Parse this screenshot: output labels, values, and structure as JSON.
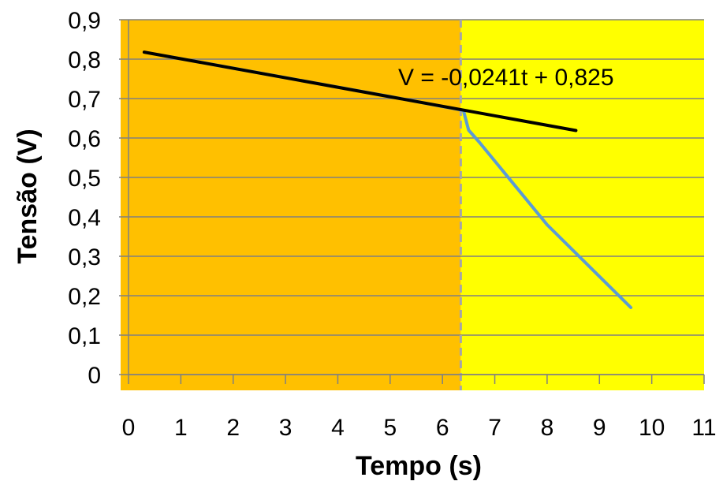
{
  "chart_data": {
    "type": "line",
    "title": "",
    "xlabel": "Tempo (s)",
    "ylabel": "Tensão (V)",
    "xlim": [
      0,
      11
    ],
    "ylim": [
      0,
      0.9
    ],
    "x_ticks": [
      "0",
      "1",
      "2",
      "3",
      "4",
      "5",
      "6",
      "7",
      "8",
      "9",
      "10",
      "11"
    ],
    "y_ticks": [
      "0",
      "0,1",
      "0,2",
      "0,3",
      "0,4",
      "0,5",
      "0,6",
      "0,7",
      "0,8",
      "0,9"
    ],
    "grid": "horizontal",
    "regions": [
      {
        "x_start": 0,
        "x_end": 6.35,
        "color": "#FFC000"
      },
      {
        "x_start": 6.35,
        "x_end": 11,
        "color": "#FFFF00"
      }
    ],
    "divider": {
      "x": 6.35,
      "color": "#A6A6A6",
      "style": "dashed"
    },
    "series": [
      {
        "color": "#5B9BD5",
        "points": [
          [
            0.7,
            0.808
          ],
          [
            1,
            0.801
          ],
          [
            2,
            0.777
          ],
          [
            3,
            0.753
          ],
          [
            4,
            0.729
          ],
          [
            5,
            0.705
          ],
          [
            6,
            0.68
          ],
          [
            6.4,
            0.67
          ],
          [
            6.5,
            0.62
          ],
          [
            6.7,
            0.59
          ],
          [
            8,
            0.38
          ],
          [
            9.6,
            0.17
          ]
        ]
      }
    ],
    "trendline": {
      "color": "#000000",
      "slope": -0.0241,
      "intercept": 0.825,
      "x_range": [
        0.3,
        8.55
      ],
      "equation": "V = -0,0241t + 0,825"
    }
  }
}
